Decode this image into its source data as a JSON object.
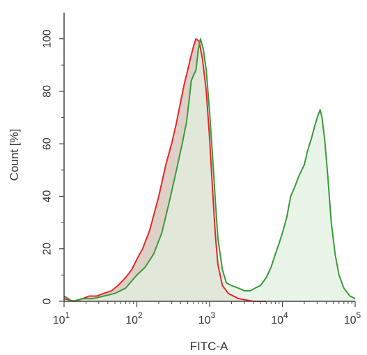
{
  "chart_data": {
    "type": "area",
    "xlabel": "FITC-A",
    "ylabel": "Count [%]",
    "xscale": "log",
    "xlim": [
      10,
      100000
    ],
    "ylim": [
      0,
      110
    ],
    "grid": false,
    "legend": "none",
    "x_ticks": [
      {
        "value": 10,
        "base": "10",
        "exp": "1"
      },
      {
        "value": 100,
        "base": "10",
        "exp": "2"
      },
      {
        "value": 1000,
        "base": "10",
        "exp": "3"
      },
      {
        "value": 10000,
        "base": "10",
        "exp": "4"
      },
      {
        "value": 100000,
        "base": "10",
        "exp": "5"
      }
    ],
    "y_ticks": [
      "0",
      "20",
      "40",
      "60",
      "80",
      "100"
    ],
    "series": [
      {
        "color": "#e8262a",
        "fill": "#d8c8bc",
        "points": [
          [
            10,
            1
          ],
          [
            14,
            0
          ],
          [
            18,
            1
          ],
          [
            22,
            2
          ],
          [
            28,
            2
          ],
          [
            35,
            3
          ],
          [
            45,
            4
          ],
          [
            55,
            6
          ],
          [
            70,
            9
          ],
          [
            85,
            12
          ],
          [
            100,
            16
          ],
          [
            120,
            20
          ],
          [
            150,
            27
          ],
          [
            200,
            40
          ],
          [
            250,
            52
          ],
          [
            300,
            60
          ],
          [
            350,
            68
          ],
          [
            400,
            76
          ],
          [
            450,
            83
          ],
          [
            500,
            88
          ],
          [
            550,
            93
          ],
          [
            600,
            97
          ],
          [
            650,
            100
          ],
          [
            720,
            99
          ],
          [
            800,
            92
          ],
          [
            900,
            80
          ],
          [
            1000,
            62
          ],
          [
            1100,
            42
          ],
          [
            1200,
            25
          ],
          [
            1300,
            14
          ],
          [
            1500,
            6
          ],
          [
            1800,
            3
          ],
          [
            2500,
            1
          ],
          [
            4000,
            0
          ],
          [
            6000,
            0
          ]
        ]
      },
      {
        "color": "#3a9a3a",
        "fill": "#e2f0e0",
        "points": [
          [
            10,
            2
          ],
          [
            13,
            0
          ],
          [
            18,
            1
          ],
          [
            25,
            1
          ],
          [
            35,
            2
          ],
          [
            50,
            3
          ],
          [
            70,
            5
          ],
          [
            100,
            10
          ],
          [
            130,
            13
          ],
          [
            170,
            18
          ],
          [
            220,
            26
          ],
          [
            280,
            38
          ],
          [
            350,
            50
          ],
          [
            420,
            60
          ],
          [
            480,
            68
          ],
          [
            520,
            76
          ],
          [
            560,
            84
          ],
          [
            600,
            86
          ],
          [
            650,
            88
          ],
          [
            700,
            96
          ],
          [
            750,
            100
          ],
          [
            820,
            96
          ],
          [
            900,
            88
          ],
          [
            1000,
            72
          ],
          [
            1100,
            55
          ],
          [
            1200,
            38
          ],
          [
            1300,
            24
          ],
          [
            1500,
            12
          ],
          [
            1700,
            7
          ],
          [
            2000,
            6
          ],
          [
            2500,
            5
          ],
          [
            3000,
            4
          ],
          [
            3600,
            4
          ],
          [
            4200,
            5
          ],
          [
            5000,
            6
          ],
          [
            6000,
            9
          ],
          [
            7000,
            13
          ],
          [
            8000,
            18
          ],
          [
            9000,
            22
          ],
          [
            10000,
            26
          ],
          [
            11500,
            32
          ],
          [
            13000,
            40
          ],
          [
            15000,
            44
          ],
          [
            17000,
            48
          ],
          [
            20000,
            52
          ],
          [
            22000,
            57
          ],
          [
            25000,
            62
          ],
          [
            28000,
            67
          ],
          [
            31000,
            71
          ],
          [
            33000,
            73
          ],
          [
            35000,
            70
          ],
          [
            38000,
            62
          ],
          [
            42000,
            48
          ],
          [
            47000,
            30
          ],
          [
            53000,
            18
          ],
          [
            60000,
            10
          ],
          [
            70000,
            5
          ],
          [
            85000,
            2
          ],
          [
            100000,
            1
          ]
        ]
      }
    ]
  }
}
